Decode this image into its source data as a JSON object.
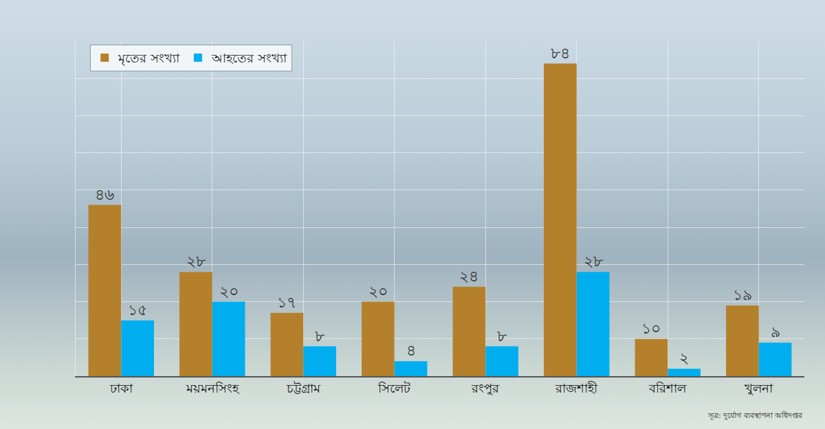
{
  "chart_data": {
    "type": "bar",
    "categories": [
      "ঢাকা",
      "ময়মনসিংহ",
      "চট্টগ্রাম",
      "সিলেট",
      "রংপুর",
      "রাজশাহী",
      "বরিশাল",
      "খুলনা"
    ],
    "series": [
      {
        "name": "মৃতের সংখ্যা",
        "color": "#b5802b",
        "values": [
          46,
          28,
          17,
          20,
          24,
          84,
          10,
          19
        ],
        "value_labels": [
          "৪৬",
          "২৮",
          "১৭",
          "২০",
          "২৪",
          "৮৪",
          "১০",
          "১৯"
        ]
      },
      {
        "name": "আহতের সংখ্যা",
        "color": "#00aeef",
        "values": [
          15,
          20,
          8,
          4,
          8,
          28,
          2,
          9
        ],
        "value_labels": [
          "১৫",
          "২০",
          "৮",
          "৪",
          "৮",
          "২৮",
          "২",
          "৯"
        ]
      }
    ],
    "ylim": [
      0,
      90
    ],
    "yticks": [
      0,
      10,
      20,
      30,
      40,
      50,
      60,
      70,
      80,
      90
    ],
    "grid": true,
    "data_labels": true,
    "tick_labels": "x",
    "legend": "top-left",
    "source": "সূত্র: দুর্যোগ ব্যবস্থাপনা অধিদপ্তর"
  }
}
